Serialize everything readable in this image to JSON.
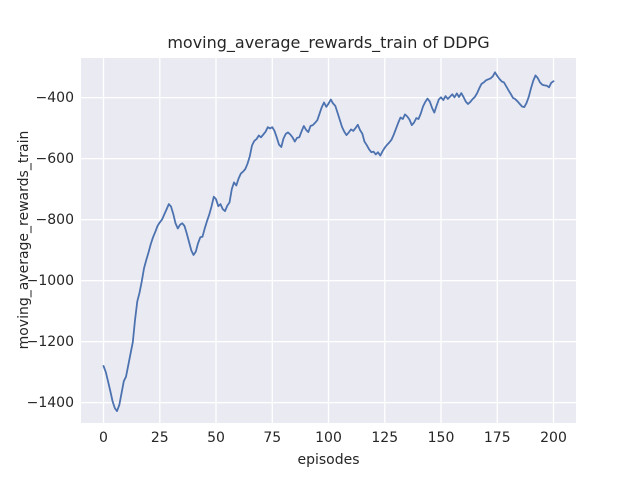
{
  "figure": {
    "background": "#ffffff",
    "plot_background": "#eaeaf2",
    "grid_color": "#ffffff",
    "text_color": "#262626"
  },
  "chart_data": {
    "type": "line",
    "title": "moving_average_rewards_train of DDPG",
    "xlabel": "episodes",
    "ylabel": "moving_average_rewards_train",
    "grid": true,
    "legend": "none",
    "x_ticks": [
      0,
      25,
      50,
      75,
      100,
      125,
      150,
      175,
      200
    ],
    "y_ticks": [
      -400,
      -600,
      -800,
      -1000,
      -1200,
      -1400
    ],
    "xlim": [
      -10,
      210
    ],
    "ylim": [
      -1467,
      -270
    ],
    "series": [
      {
        "name": "moving_average_rewards_train",
        "color": "#4c72b0",
        "line_width": 1.8,
        "x": [
          0,
          1,
          2,
          3,
          4,
          5,
          6,
          7,
          8,
          9,
          10,
          11,
          12,
          13,
          14,
          15,
          16,
          17,
          18,
          19,
          20,
          21,
          22,
          23,
          24,
          25,
          26,
          27,
          28,
          29,
          30,
          31,
          32,
          33,
          34,
          35,
          36,
          37,
          38,
          39,
          40,
          41,
          42,
          43,
          44,
          45,
          46,
          47,
          48,
          49,
          50,
          51,
          52,
          53,
          54,
          55,
          56,
          57,
          58,
          59,
          60,
          61,
          62,
          63,
          64,
          65,
          66,
          67,
          68,
          69,
          70,
          71,
          72,
          73,
          74,
          75,
          76,
          77,
          78,
          79,
          80,
          81,
          82,
          83,
          84,
          85,
          86,
          87,
          88,
          89,
          90,
          91,
          92,
          93,
          94,
          95,
          96,
          97,
          98,
          99,
          100,
          101,
          102,
          103,
          104,
          105,
          106,
          107,
          108,
          109,
          110,
          111,
          112,
          113,
          114,
          115,
          116,
          117,
          118,
          119,
          120,
          121,
          122,
          123,
          124,
          125,
          126,
          127,
          128,
          129,
          130,
          131,
          132,
          133,
          134,
          135,
          136,
          137,
          138,
          139,
          140,
          141,
          142,
          143,
          144,
          145,
          146,
          147,
          148,
          149,
          150,
          151,
          152,
          153,
          154,
          155,
          156,
          157,
          158,
          159,
          160,
          161,
          162,
          163,
          164,
          165,
          166,
          167,
          168,
          169,
          170,
          171,
          172,
          173,
          174,
          175,
          176,
          177,
          178,
          179,
          180,
          181,
          182,
          183,
          184,
          185,
          186,
          187,
          188,
          189,
          190,
          191,
          192,
          193,
          194,
          195,
          196,
          197,
          198,
          199,
          200
        ],
        "values": [
          -1280,
          -1300,
          -1330,
          -1362,
          -1395,
          -1418,
          -1428,
          -1408,
          -1370,
          -1330,
          -1315,
          -1277,
          -1240,
          -1202,
          -1130,
          -1068,
          -1040,
          -1002,
          -960,
          -932,
          -908,
          -880,
          -858,
          -840,
          -821,
          -809,
          -800,
          -783,
          -767,
          -749,
          -757,
          -782,
          -812,
          -829,
          -817,
          -812,
          -821,
          -846,
          -873,
          -901,
          -916,
          -905,
          -878,
          -858,
          -856,
          -828,
          -805,
          -783,
          -757,
          -725,
          -733,
          -756,
          -749,
          -766,
          -772,
          -754,
          -744,
          -700,
          -678,
          -688,
          -666,
          -649,
          -643,
          -634,
          -617,
          -592,
          -557,
          -542,
          -536,
          -524,
          -530,
          -521,
          -512,
          -497,
          -501,
          -497,
          -509,
          -531,
          -554,
          -562,
          -534,
          -519,
          -514,
          -521,
          -530,
          -544,
          -532,
          -530,
          -511,
          -493,
          -505,
          -513,
          -493,
          -490,
          -483,
          -474,
          -453,
          -431,
          -416,
          -430,
          -420,
          -406,
          -419,
          -427,
          -449,
          -473,
          -496,
          -512,
          -523,
          -514,
          -504,
          -509,
          -500,
          -489,
          -506,
          -518,
          -544,
          -556,
          -569,
          -579,
          -577,
          -586,
          -579,
          -590,
          -576,
          -564,
          -555,
          -547,
          -538,
          -521,
          -502,
          -482,
          -465,
          -470,
          -455,
          -462,
          -472,
          -490,
          -482,
          -467,
          -470,
          -452,
          -429,
          -414,
          -403,
          -413,
          -433,
          -449,
          -427,
          -406,
          -399,
          -408,
          -395,
          -404,
          -397,
          -389,
          -399,
          -386,
          -398,
          -385,
          -398,
          -413,
          -421,
          -414,
          -405,
          -398,
          -386,
          -369,
          -355,
          -350,
          -343,
          -340,
          -337,
          -330,
          -317,
          -329,
          -339,
          -347,
          -350,
          -363,
          -376,
          -388,
          -401,
          -405,
          -412,
          -421,
          -429,
          -431,
          -418,
          -397,
          -369,
          -344,
          -327,
          -336,
          -350,
          -358,
          -360,
          -361,
          -366,
          -351,
          -346
        ]
      }
    ]
  }
}
